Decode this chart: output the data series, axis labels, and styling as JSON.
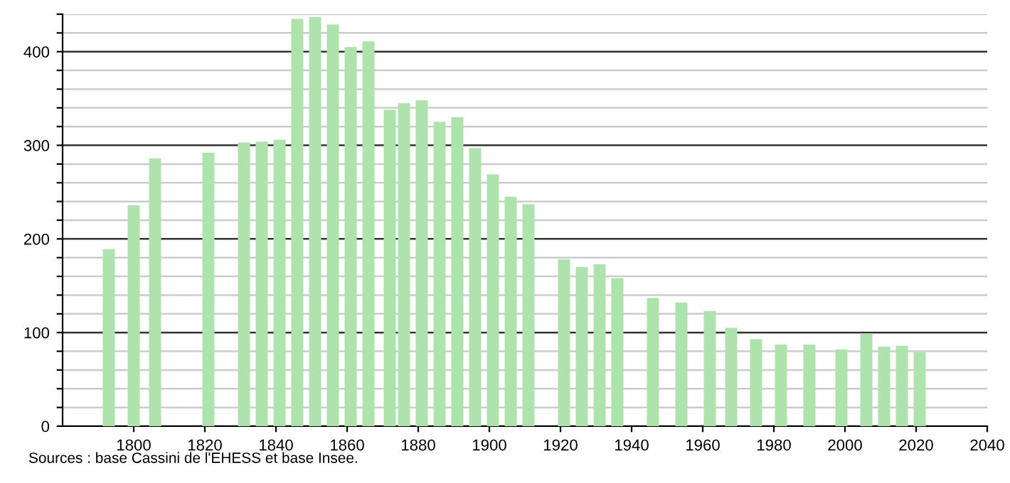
{
  "chart_data": {
    "type": "bar",
    "color": "#aee3ae",
    "x": [
      1793,
      1800,
      1806,
      1821,
      1831,
      1836,
      1841,
      1846,
      1851,
      1856,
      1861,
      1866,
      1872,
      1876,
      1881,
      1886,
      1891,
      1896,
      1901,
      1906,
      1911,
      1921,
      1926,
      1931,
      1936,
      1946,
      1954,
      1962,
      1968,
      1975,
      1982,
      1990,
      1999,
      2006,
      2011,
      2016,
      2021
    ],
    "values": [
      189,
      236,
      286,
      292,
      303,
      304,
      306,
      435,
      437,
      429,
      405,
      411,
      338,
      345,
      348,
      325,
      330,
      297,
      269,
      245,
      237,
      178,
      170,
      173,
      158,
      137,
      132,
      123,
      105,
      93,
      87,
      87,
      82,
      99,
      85,
      86,
      79
    ],
    "xlim": [
      1780,
      2040
    ],
    "xticks": [
      1800,
      1820,
      1840,
      1860,
      1880,
      1900,
      1920,
      1940,
      1960,
      1980,
      2000,
      2020,
      2040
    ],
    "ylim": [
      0,
      440
    ],
    "yticks": [
      0,
      {
        "value": 20,
        "label": null
      },
      {
        "value": 40,
        "label": null
      },
      {
        "value": 60,
        "label": null
      },
      {
        "value": 80,
        "label": null
      },
      100,
      {
        "value": 120,
        "label": null
      },
      {
        "value": 140,
        "label": null
      },
      {
        "value": 160,
        "label": null
      },
      {
        "value": 180,
        "label": null
      },
      200,
      {
        "value": 220,
        "label": null
      },
      {
        "value": 240,
        "label": null
      },
      {
        "value": 260,
        "label": null
      },
      {
        "value": 280,
        "label": null
      },
      300,
      {
        "value": 320,
        "label": null
      },
      {
        "value": 340,
        "label": null
      },
      {
        "value": 360,
        "label": null
      },
      {
        "value": 380,
        "label": null
      },
      400,
      {
        "value": 420,
        "label": null
      },
      {
        "value": 440,
        "label": null
      }
    ],
    "grid": "y",
    "annotations": [
      "Sources : base Cassini de l'EHESS et base Insee."
    ]
  }
}
